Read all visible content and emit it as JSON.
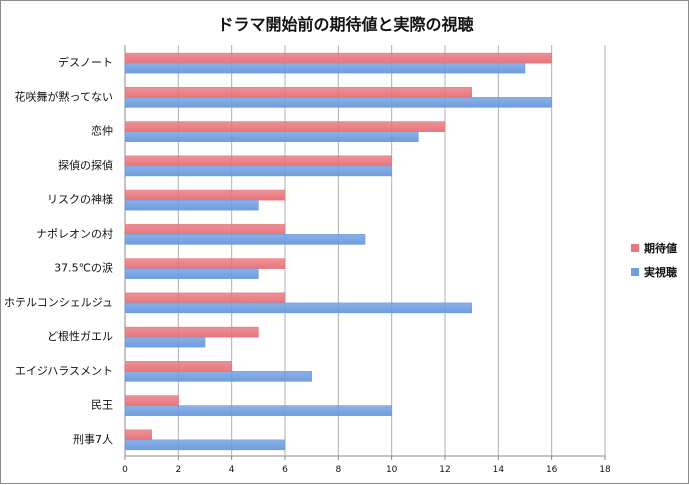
{
  "chart_data": {
    "type": "bar",
    "orientation": "horizontal",
    "title": "ドラマ開始前の期待値と実際の視聴",
    "categories": [
      "デスノート",
      "花咲舞が黙ってない",
      "恋仲",
      "探偵の探偵",
      "リスクの神様",
      "ナポレオンの村",
      "37.5℃の涙",
      "ホテルコンシェルジュ",
      "ど根性ガエル",
      "エイジハラスメント",
      "民王",
      "刑事7人"
    ],
    "series": [
      {
        "name": "期待値",
        "color": "#e8767c",
        "values": [
          16,
          13,
          12,
          10,
          6,
          6,
          6,
          6,
          5,
          4,
          2,
          1
        ]
      },
      {
        "name": "実視聴",
        "color": "#6f9de0",
        "values": [
          15,
          16,
          11,
          10,
          5,
          9,
          5,
          13,
          3,
          7,
          10,
          6
        ]
      }
    ],
    "xlim": [
      0,
      18
    ],
    "xticks": [
      0,
      2,
      4,
      6,
      8,
      10,
      12,
      14,
      16,
      18
    ],
    "grid": true,
    "legend_position": "right"
  }
}
